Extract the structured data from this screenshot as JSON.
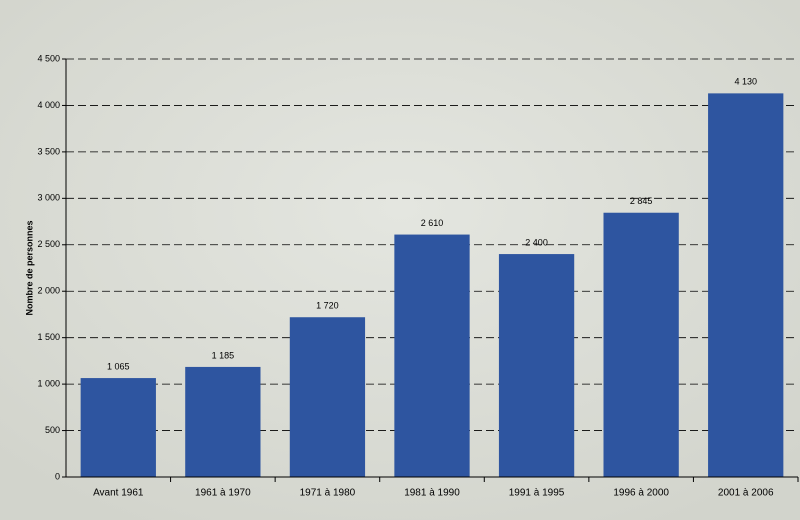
{
  "chart_data": {
    "type": "bar",
    "y_label": "Nombre de personnes",
    "categories": [
      "Avant 1961",
      "1961 à 1970",
      "1971 à 1980",
      "1981 à 1990",
      "1991 à 1995",
      "1996 à 2000",
      "2001 à 2006"
    ],
    "values": [
      1065,
      1185,
      1720,
      2610,
      2400,
      2845,
      4130
    ],
    "value_labels": [
      "1 065",
      "1 185",
      "1 720",
      "2 610",
      "2 400",
      "2 845",
      "4 130"
    ],
    "color": "#2e55a0",
    "ylim": [
      0,
      4500
    ],
    "yticks": [
      0,
      500,
      {
        "value": 1000,
        "label": "1 000"
      },
      {
        "value": 1500,
        "label": "1 500"
      },
      {
        "value": 2000,
        "label": "2 000"
      },
      {
        "value": 2500,
        "label": "2 500"
      },
      {
        "value": 3000,
        "label": "3 000"
      },
      {
        "value": 3500,
        "label": "3 500"
      },
      {
        "value": 4000,
        "label": "4 000"
      },
      {
        "value": 4500,
        "label": "4 500"
      }
    ],
    "grid": true
  }
}
